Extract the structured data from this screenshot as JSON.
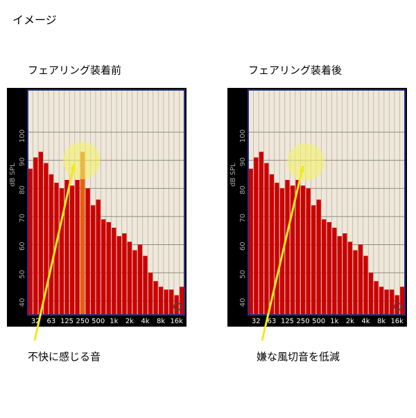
{
  "header": {
    "title": "イメージ"
  },
  "chart_data": [
    {
      "type": "bar",
      "title": "フェアリング装着前",
      "y_label": "dB SPL",
      "annotation": "不快に感じる音",
      "categories": [
        null,
        "32",
        null,
        null,
        "63",
        null,
        null,
        "125",
        null,
        null,
        "250",
        null,
        null,
        "500",
        null,
        null,
        "1k",
        null,
        null,
        "2k",
        null,
        null,
        "4k",
        null,
        null,
        "8k",
        null,
        null,
        "16k",
        null
      ],
      "values": [
        87,
        91,
        93,
        89,
        85,
        82,
        80,
        83,
        81,
        83,
        93,
        80,
        74,
        76,
        69,
        68,
        66,
        63,
        64,
        61,
        58,
        60,
        56,
        50,
        47,
        45,
        44,
        44,
        42,
        45
      ],
      "color": "#cc0000",
      "highlight": 10,
      "highlight_color": "#e8600a",
      "ylim": [
        35,
        115
      ],
      "yticks": [
        40,
        50,
        60,
        70,
        80,
        90,
        100
      ],
      "grid": true
    },
    {
      "type": "bar",
      "title": "フェアリング装着後",
      "y_label": "dB SPL",
      "annotation": "嫌な風切音を低減",
      "categories": [
        null,
        "32",
        null,
        null,
        "63",
        null,
        null,
        "125",
        null,
        null,
        "250",
        null,
        null,
        "500",
        null,
        null,
        "1k",
        null,
        null,
        "2k",
        null,
        null,
        "4k",
        null,
        null,
        "8k",
        null,
        null,
        "16k",
        null
      ],
      "values": [
        87,
        91,
        93,
        89,
        85,
        82,
        80,
        83,
        81,
        83,
        81,
        80,
        74,
        76,
        69,
        68,
        66,
        63,
        64,
        61,
        58,
        60,
        56,
        50,
        47,
        45,
        44,
        44,
        42,
        45
      ],
      "color": "#cc0000",
      "ylim": [
        35,
        115
      ],
      "yticks": [
        40,
        50,
        60,
        70,
        80,
        90,
        100
      ],
      "grid": true
    }
  ]
}
